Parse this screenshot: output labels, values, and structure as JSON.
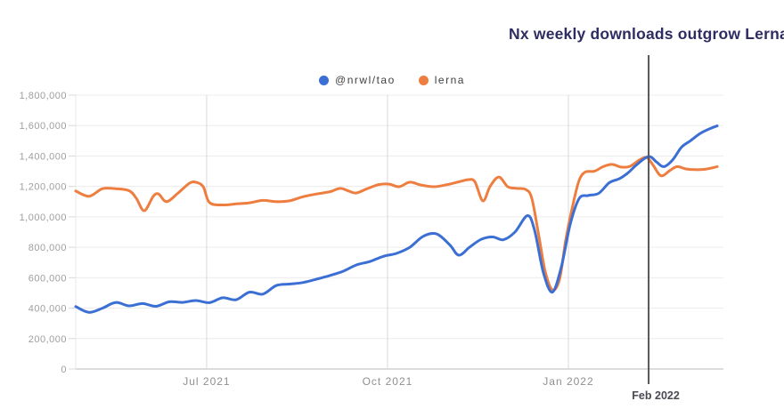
{
  "chart_data": {
    "type": "line",
    "title": "Nx weekly downloads outgrow Lerna",
    "title_color": "#2f2c62",
    "xlabel": "",
    "ylabel": "",
    "grid": true,
    "legend_position": "top-center",
    "x_unit": "weeks_from_start (start ≈ late Apr 2021)",
    "t_max": 46.6,
    "y_axis": {
      "min": 0,
      "max": 1800000,
      "step": 200000
    },
    "x_ticks": [
      {
        "t": 9.51,
        "label": "Jul 2021"
      },
      {
        "t": 22.65,
        "label": "Oct 2021"
      },
      {
        "t": 35.79,
        "label": "Jan 2022"
      }
    ],
    "annotation": {
      "t": 41.62,
      "label": "Feb 2022",
      "color": "#56565c"
    },
    "series": [
      {
        "name": "@nrwl/tao",
        "color": "#3b6fd4",
        "points": [
          [
            0,
            410000
          ],
          [
            0.97,
            372000
          ],
          [
            1.94,
            400000
          ],
          [
            2.91,
            437000
          ],
          [
            3.88,
            415000
          ],
          [
            4.85,
            430000
          ],
          [
            5.83,
            412000
          ],
          [
            6.8,
            442000
          ],
          [
            7.77,
            438000
          ],
          [
            8.74,
            450000
          ],
          [
            9.71,
            436000
          ],
          [
            10.68,
            468000
          ],
          [
            11.65,
            455000
          ],
          [
            12.62,
            505000
          ],
          [
            13.59,
            492000
          ],
          [
            14.56,
            548000
          ],
          [
            15.53,
            558000
          ],
          [
            16.5,
            568000
          ],
          [
            17.48,
            590000
          ],
          [
            18.45,
            614000
          ],
          [
            19.42,
            642000
          ],
          [
            20.39,
            684000
          ],
          [
            21.36,
            706000
          ],
          [
            22.33,
            740000
          ],
          [
            23.3,
            760000
          ],
          [
            24.27,
            800000
          ],
          [
            25.24,
            872000
          ],
          [
            26.21,
            888000
          ],
          [
            27.18,
            815000
          ],
          [
            27.83,
            748000
          ],
          [
            28.61,
            800000
          ],
          [
            29.45,
            852000
          ],
          [
            30.29,
            868000
          ],
          [
            31.07,
            850000
          ],
          [
            31.91,
            900000
          ],
          [
            32.82,
            1008000
          ],
          [
            33.33,
            912000
          ],
          [
            33.98,
            631000
          ],
          [
            34.63,
            505000
          ],
          [
            35.28,
            672000
          ],
          [
            35.92,
            950000
          ],
          [
            36.57,
            1120000
          ],
          [
            37.22,
            1140000
          ],
          [
            38.0,
            1155000
          ],
          [
            38.77,
            1225000
          ],
          [
            39.48,
            1250000
          ],
          [
            40.13,
            1290000
          ],
          [
            40.78,
            1345000
          ],
          [
            41.62,
            1397000
          ],
          [
            42.2,
            1360000
          ],
          [
            42.72,
            1330000
          ],
          [
            43.37,
            1375000
          ],
          [
            44.01,
            1458000
          ],
          [
            44.66,
            1500000
          ],
          [
            45.31,
            1545000
          ],
          [
            45.95,
            1575000
          ],
          [
            46.6,
            1598000
          ]
        ]
      },
      {
        "name": "lerna",
        "color": "#ee7d40",
        "points": [
          [
            0,
            1170000
          ],
          [
            0.97,
            1135000
          ],
          [
            1.94,
            1185000
          ],
          [
            2.91,
            1185000
          ],
          [
            3.88,
            1172000
          ],
          [
            4.4,
            1122000
          ],
          [
            4.98,
            1040000
          ],
          [
            5.63,
            1135000
          ],
          [
            6.02,
            1150000
          ],
          [
            6.6,
            1100000
          ],
          [
            7.44,
            1157000
          ],
          [
            8.28,
            1222000
          ],
          [
            8.74,
            1227000
          ],
          [
            9.26,
            1198000
          ],
          [
            9.71,
            1095000
          ],
          [
            10.68,
            1078000
          ],
          [
            11.65,
            1085000
          ],
          [
            12.62,
            1092000
          ],
          [
            13.59,
            1108000
          ],
          [
            14.56,
            1100000
          ],
          [
            15.53,
            1105000
          ],
          [
            16.5,
            1132000
          ],
          [
            17.48,
            1150000
          ],
          [
            18.45,
            1165000
          ],
          [
            19.22,
            1187000
          ],
          [
            19.87,
            1168000
          ],
          [
            20.39,
            1157000
          ],
          [
            21.17,
            1185000
          ],
          [
            22.01,
            1212000
          ],
          [
            22.78,
            1215000
          ],
          [
            23.5,
            1198000
          ],
          [
            24.27,
            1228000
          ],
          [
            25.05,
            1210000
          ],
          [
            26.02,
            1198000
          ],
          [
            26.99,
            1212000
          ],
          [
            27.83,
            1230000
          ],
          [
            28.54,
            1245000
          ],
          [
            29.0,
            1230000
          ],
          [
            29.58,
            1105000
          ],
          [
            30.1,
            1200000
          ],
          [
            30.74,
            1262000
          ],
          [
            31.39,
            1198000
          ],
          [
            32.04,
            1187000
          ],
          [
            32.69,
            1180000
          ],
          [
            33.14,
            1120000
          ],
          [
            33.66,
            865000
          ],
          [
            34.11,
            640000
          ],
          [
            34.63,
            520000
          ],
          [
            35.15,
            590000
          ],
          [
            35.6,
            848000
          ],
          [
            36.12,
            1080000
          ],
          [
            36.57,
            1239000
          ],
          [
            37.02,
            1295000
          ],
          [
            37.67,
            1300000
          ],
          [
            38.32,
            1330000
          ],
          [
            38.96,
            1345000
          ],
          [
            39.61,
            1327000
          ],
          [
            40.26,
            1332000
          ],
          [
            40.97,
            1375000
          ],
          [
            41.49,
            1390000
          ],
          [
            41.94,
            1340000
          ],
          [
            42.52,
            1270000
          ],
          [
            43.17,
            1305000
          ],
          [
            43.69,
            1330000
          ],
          [
            44.33,
            1315000
          ],
          [
            44.98,
            1310000
          ],
          [
            45.63,
            1312000
          ],
          [
            46.15,
            1320000
          ],
          [
            46.6,
            1330000
          ]
        ]
      }
    ],
    "colors": {
      "h_gridline": "#ececec",
      "v_gridline": "#d9d9d9",
      "axis_line": "#dcdcdc",
      "y_tick_label": "#9e9e9e",
      "x_tick_label": "#8f8f8f"
    }
  }
}
